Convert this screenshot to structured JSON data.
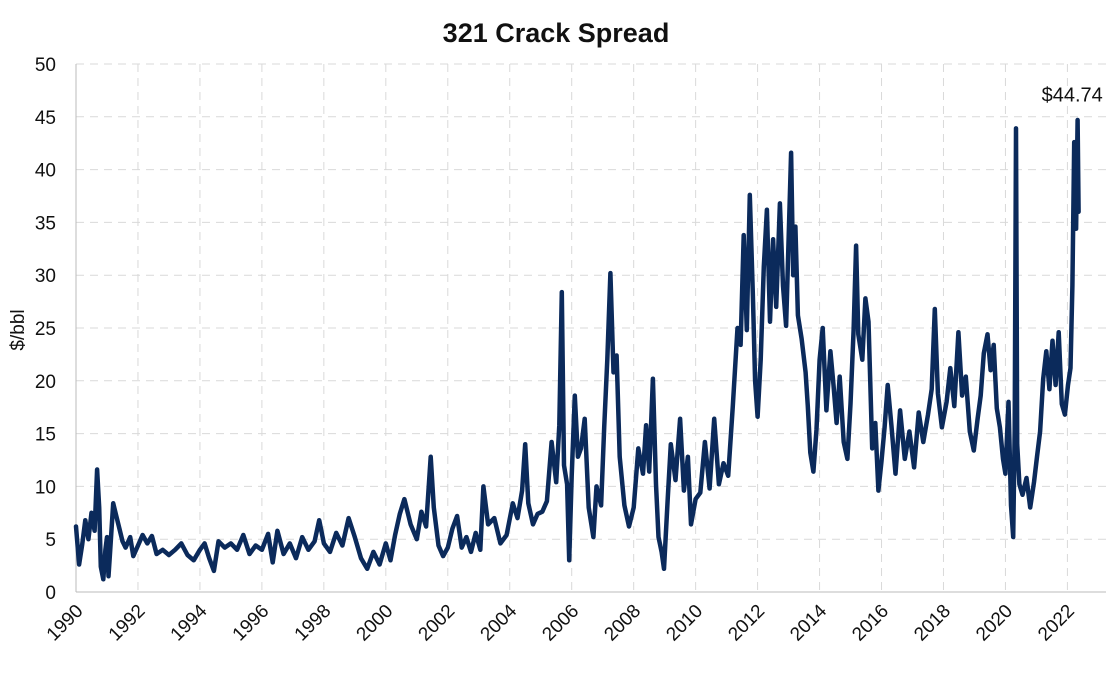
{
  "chart_data": {
    "type": "line",
    "title": "321 Crack Spread",
    "xlabel": "",
    "ylabel": "$/bbl",
    "xlim": [
      1990,
      2022.6
    ],
    "ylim": [
      0,
      50
    ],
    "yticks": [
      0,
      5,
      10,
      15,
      20,
      25,
      30,
      35,
      40,
      45,
      50
    ],
    "xticks": [
      "1990",
      "1992",
      "1994",
      "1996",
      "1998",
      "2000",
      "2002",
      "2004",
      "2006",
      "2008",
      "2010",
      "2012",
      "2014",
      "2016",
      "2018",
      "2020",
      "2022"
    ],
    "grid": true,
    "legend": "none",
    "series": [
      {
        "color": "#0b2a5b",
        "points": [
          [
            1990.0,
            6.2
          ],
          [
            1990.1,
            2.6
          ],
          [
            1990.2,
            4.5
          ],
          [
            1990.3,
            6.8
          ],
          [
            1990.4,
            5.0
          ],
          [
            1990.5,
            7.5
          ],
          [
            1990.6,
            5.8
          ],
          [
            1990.68,
            11.6
          ],
          [
            1990.75,
            8.0
          ],
          [
            1990.8,
            2.4
          ],
          [
            1990.88,
            1.2
          ],
          [
            1990.95,
            4.0
          ],
          [
            1991.0,
            5.2
          ],
          [
            1991.05,
            1.5
          ],
          [
            1991.1,
            3.8
          ],
          [
            1991.2,
            8.4
          ],
          [
            1991.3,
            7.2
          ],
          [
            1991.4,
            6.0
          ],
          [
            1991.5,
            4.8
          ],
          [
            1991.6,
            4.2
          ],
          [
            1991.75,
            5.2
          ],
          [
            1991.85,
            3.4
          ],
          [
            1992.0,
            4.4
          ],
          [
            1992.15,
            5.4
          ],
          [
            1992.3,
            4.6
          ],
          [
            1992.45,
            5.3
          ],
          [
            1992.6,
            3.6
          ],
          [
            1992.8,
            4.0
          ],
          [
            1993.0,
            3.5
          ],
          [
            1993.2,
            4.0
          ],
          [
            1993.4,
            4.6
          ],
          [
            1993.6,
            3.5
          ],
          [
            1993.8,
            3.0
          ],
          [
            1994.0,
            4.0
          ],
          [
            1994.15,
            4.6
          ],
          [
            1994.3,
            3.2
          ],
          [
            1994.45,
            2.0
          ],
          [
            1994.6,
            4.8
          ],
          [
            1994.8,
            4.2
          ],
          [
            1995.0,
            4.6
          ],
          [
            1995.2,
            4.0
          ],
          [
            1995.4,
            5.4
          ],
          [
            1995.6,
            3.6
          ],
          [
            1995.8,
            4.4
          ],
          [
            1996.0,
            4.0
          ],
          [
            1996.2,
            5.5
          ],
          [
            1996.35,
            2.8
          ],
          [
            1996.5,
            5.8
          ],
          [
            1996.7,
            3.6
          ],
          [
            1996.9,
            4.6
          ],
          [
            1997.1,
            3.2
          ],
          [
            1997.3,
            5.2
          ],
          [
            1997.5,
            4.0
          ],
          [
            1997.7,
            4.8
          ],
          [
            1997.85,
            6.8
          ],
          [
            1998.0,
            4.6
          ],
          [
            1998.2,
            3.8
          ],
          [
            1998.4,
            5.6
          ],
          [
            1998.6,
            4.4
          ],
          [
            1998.8,
            7.0
          ],
          [
            1999.0,
            5.2
          ],
          [
            1999.2,
            3.2
          ],
          [
            1999.4,
            2.2
          ],
          [
            1999.6,
            3.8
          ],
          [
            1999.8,
            2.6
          ],
          [
            2000.0,
            4.6
          ],
          [
            2000.15,
            3.0
          ],
          [
            2000.3,
            5.4
          ],
          [
            2000.45,
            7.4
          ],
          [
            2000.6,
            8.8
          ],
          [
            2000.8,
            6.4
          ],
          [
            2001.0,
            5.0
          ],
          [
            2001.15,
            7.6
          ],
          [
            2001.3,
            6.2
          ],
          [
            2001.45,
            12.8
          ],
          [
            2001.55,
            8.0
          ],
          [
            2001.7,
            4.4
          ],
          [
            2001.85,
            3.4
          ],
          [
            2002.0,
            4.2
          ],
          [
            2002.15,
            6.0
          ],
          [
            2002.3,
            7.2
          ],
          [
            2002.45,
            4.2
          ],
          [
            2002.6,
            5.2
          ],
          [
            2002.75,
            3.8
          ],
          [
            2002.9,
            5.6
          ],
          [
            2003.05,
            4.0
          ],
          [
            2003.15,
            10.0
          ],
          [
            2003.3,
            6.4
          ],
          [
            2003.5,
            7.0
          ],
          [
            2003.7,
            4.6
          ],
          [
            2003.9,
            5.4
          ],
          [
            2004.1,
            8.4
          ],
          [
            2004.25,
            7.0
          ],
          [
            2004.4,
            9.6
          ],
          [
            2004.5,
            14.0
          ],
          [
            2004.6,
            8.4
          ],
          [
            2004.75,
            6.4
          ],
          [
            2004.9,
            7.4
          ],
          [
            2005.05,
            7.6
          ],
          [
            2005.2,
            8.6
          ],
          [
            2005.35,
            14.2
          ],
          [
            2005.5,
            10.4
          ],
          [
            2005.6,
            15.8
          ],
          [
            2005.68,
            28.4
          ],
          [
            2005.75,
            12.0
          ],
          [
            2005.85,
            10.2
          ],
          [
            2005.92,
            3.0
          ],
          [
            2006.0,
            11.0
          ],
          [
            2006.1,
            18.6
          ],
          [
            2006.2,
            12.8
          ],
          [
            2006.3,
            13.6
          ],
          [
            2006.42,
            16.4
          ],
          [
            2006.55,
            8.0
          ],
          [
            2006.7,
            5.2
          ],
          [
            2006.8,
            10.0
          ],
          [
            2006.95,
            8.2
          ],
          [
            2007.05,
            15.6
          ],
          [
            2007.15,
            22.0
          ],
          [
            2007.25,
            30.2
          ],
          [
            2007.35,
            20.8
          ],
          [
            2007.45,
            22.4
          ],
          [
            2007.55,
            12.8
          ],
          [
            2007.7,
            8.2
          ],
          [
            2007.85,
            6.2
          ],
          [
            2008.0,
            8.0
          ],
          [
            2008.15,
            13.6
          ],
          [
            2008.3,
            11.2
          ],
          [
            2008.4,
            15.8
          ],
          [
            2008.5,
            11.4
          ],
          [
            2008.62,
            20.2
          ],
          [
            2008.72,
            10.2
          ],
          [
            2008.8,
            5.2
          ],
          [
            2008.9,
            3.8
          ],
          [
            2008.98,
            2.2
          ],
          [
            2009.1,
            8.8
          ],
          [
            2009.2,
            14.0
          ],
          [
            2009.35,
            10.6
          ],
          [
            2009.5,
            16.4
          ],
          [
            2009.62,
            9.6
          ],
          [
            2009.75,
            12.8
          ],
          [
            2009.85,
            6.4
          ],
          [
            2010.0,
            8.8
          ],
          [
            2010.15,
            9.4
          ],
          [
            2010.3,
            14.2
          ],
          [
            2010.45,
            9.8
          ],
          [
            2010.6,
            16.4
          ],
          [
            2010.75,
            10.2
          ],
          [
            2010.9,
            12.2
          ],
          [
            2011.05,
            11.0
          ],
          [
            2011.2,
            17.6
          ],
          [
            2011.35,
            25.0
          ],
          [
            2011.45,
            23.4
          ],
          [
            2011.55,
            33.8
          ],
          [
            2011.65,
            24.8
          ],
          [
            2011.75,
            37.6
          ],
          [
            2011.85,
            28.0
          ],
          [
            2011.92,
            20.0
          ],
          [
            2012.0,
            16.6
          ],
          [
            2012.1,
            22.0
          ],
          [
            2012.2,
            30.8
          ],
          [
            2012.3,
            36.2
          ],
          [
            2012.4,
            25.6
          ],
          [
            2012.5,
            33.4
          ],
          [
            2012.6,
            27.0
          ],
          [
            2012.72,
            36.8
          ],
          [
            2012.82,
            29.0
          ],
          [
            2012.92,
            25.2
          ],
          [
            2013.0,
            33.4
          ],
          [
            2013.08,
            41.6
          ],
          [
            2013.15,
            30.0
          ],
          [
            2013.22,
            34.6
          ],
          [
            2013.3,
            26.2
          ],
          [
            2013.42,
            24.0
          ],
          [
            2013.55,
            20.8
          ],
          [
            2013.62,
            17.6
          ],
          [
            2013.7,
            13.2
          ],
          [
            2013.8,
            11.4
          ],
          [
            2013.9,
            15.4
          ],
          [
            2014.0,
            22.0
          ],
          [
            2014.1,
            25.0
          ],
          [
            2014.22,
            17.2
          ],
          [
            2014.35,
            22.8
          ],
          [
            2014.45,
            19.6
          ],
          [
            2014.55,
            16.0
          ],
          [
            2014.65,
            20.4
          ],
          [
            2014.78,
            14.2
          ],
          [
            2014.9,
            12.6
          ],
          [
            2015.0,
            17.8
          ],
          [
            2015.1,
            24.8
          ],
          [
            2015.18,
            32.8
          ],
          [
            2015.25,
            24.4
          ],
          [
            2015.38,
            22.0
          ],
          [
            2015.48,
            27.8
          ],
          [
            2015.58,
            25.6
          ],
          [
            2015.7,
            13.6
          ],
          [
            2015.8,
            16.0
          ],
          [
            2015.9,
            9.6
          ],
          [
            2016.0,
            12.4
          ],
          [
            2016.1,
            15.6
          ],
          [
            2016.2,
            19.6
          ],
          [
            2016.32,
            15.8
          ],
          [
            2016.45,
            11.2
          ],
          [
            2016.6,
            17.2
          ],
          [
            2016.75,
            12.6
          ],
          [
            2016.9,
            15.2
          ],
          [
            2017.05,
            11.8
          ],
          [
            2017.2,
            17.0
          ],
          [
            2017.35,
            14.2
          ],
          [
            2017.5,
            16.8
          ],
          [
            2017.62,
            19.2
          ],
          [
            2017.72,
            26.8
          ],
          [
            2017.82,
            18.8
          ],
          [
            2017.95,
            15.6
          ],
          [
            2018.1,
            18.0
          ],
          [
            2018.22,
            21.2
          ],
          [
            2018.35,
            17.6
          ],
          [
            2018.48,
            24.6
          ],
          [
            2018.6,
            18.6
          ],
          [
            2018.72,
            20.4
          ],
          [
            2018.85,
            15.2
          ],
          [
            2018.98,
            13.4
          ],
          [
            2019.1,
            16.4
          ],
          [
            2019.2,
            18.6
          ],
          [
            2019.3,
            22.6
          ],
          [
            2019.42,
            24.4
          ],
          [
            2019.52,
            21.0
          ],
          [
            2019.62,
            23.4
          ],
          [
            2019.72,
            17.4
          ],
          [
            2019.82,
            15.6
          ],
          [
            2019.92,
            12.6
          ],
          [
            2020.0,
            11.2
          ],
          [
            2020.1,
            18.0
          ],
          [
            2020.18,
            8.2
          ],
          [
            2020.25,
            5.2
          ],
          [
            2020.3,
            15.4
          ],
          [
            2020.34,
            43.9
          ],
          [
            2020.38,
            14.0
          ],
          [
            2020.45,
            10.2
          ],
          [
            2020.55,
            9.2
          ],
          [
            2020.68,
            10.8
          ],
          [
            2020.8,
            8.0
          ],
          [
            2020.92,
            10.4
          ],
          [
            2021.02,
            12.8
          ],
          [
            2021.12,
            15.2
          ],
          [
            2021.22,
            20.2
          ],
          [
            2021.32,
            22.8
          ],
          [
            2021.42,
            19.2
          ],
          [
            2021.52,
            23.8
          ],
          [
            2021.62,
            19.6
          ],
          [
            2021.72,
            24.6
          ],
          [
            2021.82,
            17.8
          ],
          [
            2021.92,
            16.8
          ],
          [
            2022.02,
            19.6
          ],
          [
            2022.1,
            21.2
          ],
          [
            2022.16,
            29.0
          ],
          [
            2022.22,
            42.6
          ],
          [
            2022.28,
            34.4
          ],
          [
            2022.33,
            44.7
          ],
          [
            2022.36,
            36.0
          ]
        ]
      }
    ],
    "annotations": [
      {
        "text": "$44.74",
        "x": 2022.33,
        "y": 44.74
      }
    ]
  }
}
